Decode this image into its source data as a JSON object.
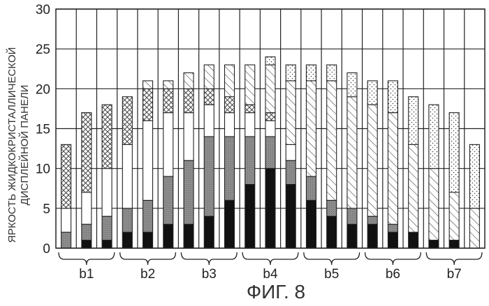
{
  "chart_data": {
    "type": "bar",
    "stacked": true,
    "caption": "ФИГ. 8",
    "ylabel_lines": [
      "ЯРКОСТЬ ЖИДКОКРИСТАЛЛИЧЕСКОЙ",
      "ДИСПЛЕЙНОЙ ПАНЕЛИ"
    ],
    "ylim": [
      0,
      30
    ],
    "yticks": [
      0,
      5,
      10,
      15,
      20,
      25,
      30
    ],
    "grid": true,
    "groups": [
      "b1",
      "b2",
      "b3",
      "b4",
      "b5",
      "b6",
      "b7"
    ],
    "bars": [
      {
        "group": "b1",
        "segments": [
          0,
          2,
          3,
          8,
          0,
          0
        ]
      },
      {
        "group": "b1",
        "segments": [
          1,
          2,
          4,
          10,
          0,
          0
        ]
      },
      {
        "group": "b1",
        "segments": [
          1,
          3,
          6,
          8,
          0,
          0
        ]
      },
      {
        "group": "b2",
        "segments": [
          2,
          3,
          8,
          6,
          0,
          0
        ]
      },
      {
        "group": "b2",
        "segments": [
          2,
          4,
          10,
          4,
          1,
          0
        ]
      },
      {
        "group": "b2",
        "segments": [
          3,
          6,
          8,
          3,
          1,
          0
        ]
      },
      {
        "group": "b3",
        "segments": [
          3,
          8,
          6,
          3,
          2,
          0
        ]
      },
      {
        "group": "b3",
        "segments": [
          4,
          10,
          4,
          2,
          3,
          0
        ]
      },
      {
        "group": "b3",
        "segments": [
          6,
          8,
          3,
          2,
          4,
          0
        ]
      },
      {
        "group": "b4",
        "segments": [
          8,
          6,
          3,
          1,
          5,
          0
        ]
      },
      {
        "group": "b4",
        "segments": [
          10,
          4,
          2,
          1,
          6,
          1
        ]
      },
      {
        "group": "b4",
        "segments": [
          8,
          3,
          2,
          0,
          8,
          2
        ]
      },
      {
        "group": "b5",
        "segments": [
          6,
          3,
          0,
          0,
          12,
          2
        ]
      },
      {
        "group": "b5",
        "segments": [
          4,
          2,
          0,
          0,
          15,
          2
        ]
      },
      {
        "group": "b5",
        "segments": [
          3,
          2,
          0,
          0,
          14,
          3
        ]
      },
      {
        "group": "b6",
        "segments": [
          3,
          1,
          0,
          0,
          14,
          3
        ]
      },
      {
        "group": "b6",
        "segments": [
          2,
          1,
          0,
          0,
          14,
          4
        ]
      },
      {
        "group": "b6",
        "segments": [
          2,
          0,
          0,
          0,
          11,
          6
        ]
      },
      {
        "group": "b7",
        "segments": [
          1,
          0,
          0,
          0,
          9,
          8
        ]
      },
      {
        "group": "b7",
        "segments": [
          1,
          0,
          0,
          0,
          6,
          10
        ]
      },
      {
        "group": "b7",
        "segments": [
          0,
          0,
          0,
          0,
          5,
          8
        ]
      }
    ]
  }
}
